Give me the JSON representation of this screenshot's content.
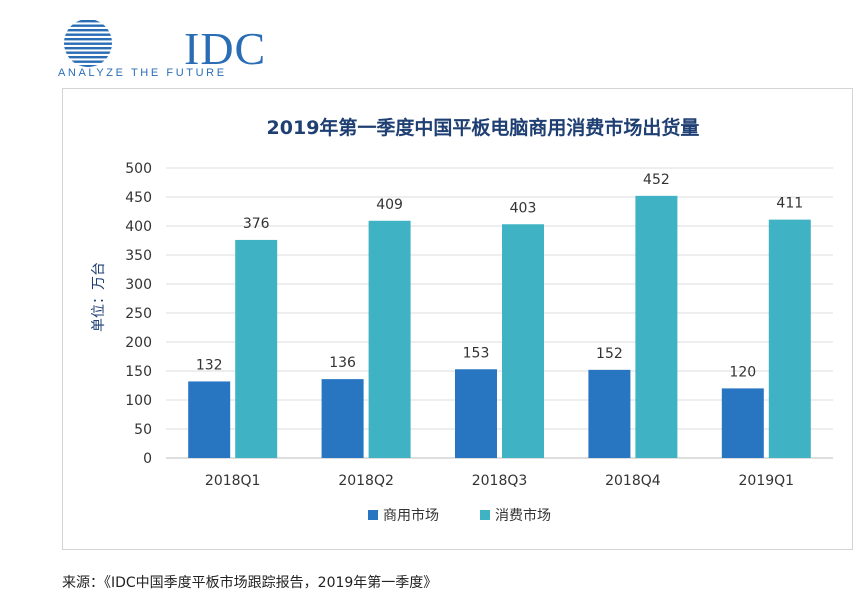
{
  "logo": {
    "name": "IDC",
    "tagline": "ANALYZE THE FUTURE",
    "color": "#2a6db5"
  },
  "source_note": "来源：《IDC中国季度平板市场跟踪报告，2019年第一季度》",
  "chart_data": {
    "type": "bar",
    "title": "2019年第一季度中国平板电脑商用消费市场出货量",
    "xlabel": "",
    "ylabel": "单位：万台",
    "ylim": [
      0,
      500
    ],
    "yticks": [
      0,
      50,
      100,
      150,
      200,
      250,
      300,
      350,
      400,
      450,
      500
    ],
    "categories": [
      "2018Q1",
      "2018Q2",
      "2018Q3",
      "2018Q4",
      "2019Q1"
    ],
    "series": [
      {
        "name": "商用市场",
        "values": [
          132,
          136,
          153,
          152,
          120
        ],
        "color": "#2876c2"
      },
      {
        "name": "消费市场",
        "values": [
          376,
          409,
          403,
          452,
          411
        ],
        "color": "#3fb3c3"
      }
    ],
    "grid": true,
    "legend_position": "bottom",
    "data_labels": true
  }
}
